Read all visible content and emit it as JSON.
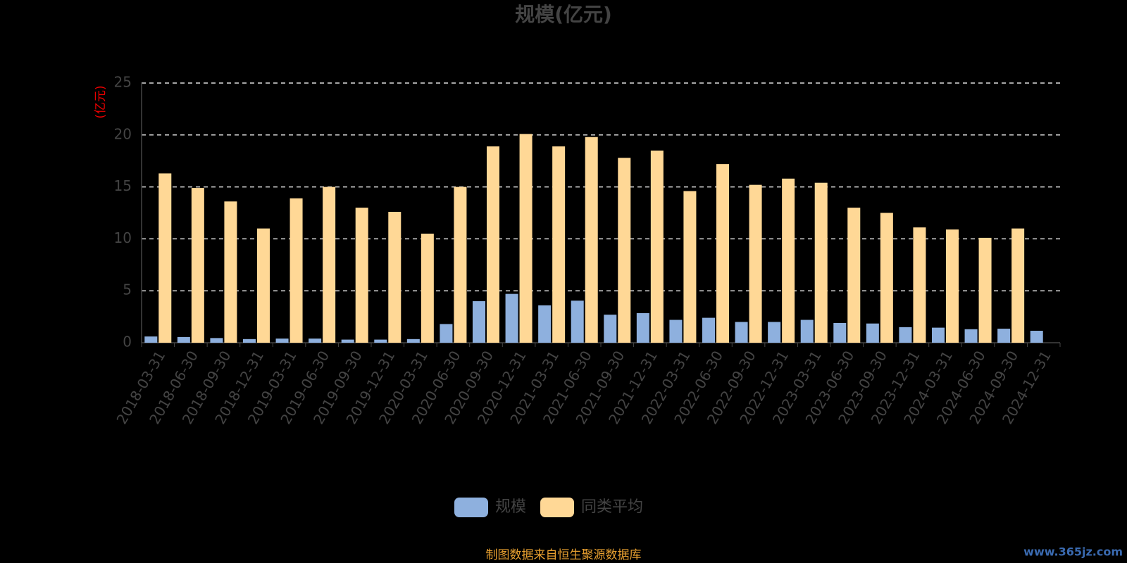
{
  "chart_data": {
    "type": "bar",
    "title": "规模(亿元)",
    "y_axis_label": "(亿元)",
    "source": "制图数据来自恒生聚源数据库",
    "watermark": "www.365jz.com",
    "categories": [
      "2018-03-31",
      "2018-06-30",
      "2018-09-30",
      "2018-12-31",
      "2019-03-31",
      "2019-06-30",
      "2019-09-30",
      "2019-12-31",
      "2020-03-31",
      "2020-06-30",
      "2020-09-30",
      "2020-12-31",
      "2021-03-31",
      "2021-06-30",
      "2021-09-30",
      "2021-12-31",
      "2022-03-31",
      "2022-06-30",
      "2022-09-30",
      "2022-12-31",
      "2023-03-31",
      "2023-06-30",
      "2023-09-30",
      "2023-12-31",
      "2024-03-31",
      "2024-06-30",
      "2024-09-30",
      "2024-12-31"
    ],
    "series": [
      {
        "name": "规模",
        "color": "#8eb0de",
        "values": [
          0.6,
          0.55,
          0.45,
          0.35,
          0.4,
          0.4,
          0.3,
          0.3,
          0.35,
          1.8,
          4.0,
          4.7,
          3.6,
          4.05,
          2.7,
          2.85,
          2.2,
          2.4,
          2.0,
          2.0,
          2.2,
          1.9,
          1.85,
          1.5,
          1.45,
          1.3,
          1.35,
          1.15
        ]
      },
      {
        "name": "同类平均",
        "color": "#ffd896",
        "values": [
          16.3,
          14.9,
          13.6,
          11.0,
          13.9,
          15.0,
          13.0,
          12.6,
          10.5,
          15.0,
          18.9,
          20.1,
          18.9,
          19.8,
          17.8,
          18.5,
          14.6,
          17.2,
          15.2,
          15.8,
          15.4,
          13.0,
          12.5,
          11.1,
          10.9,
          10.1,
          11.0,
          null
        ]
      }
    ],
    "ylim": [
      0,
      25
    ],
    "yticks": [
      0,
      5,
      10,
      15,
      20,
      25
    ],
    "grid": true
  }
}
